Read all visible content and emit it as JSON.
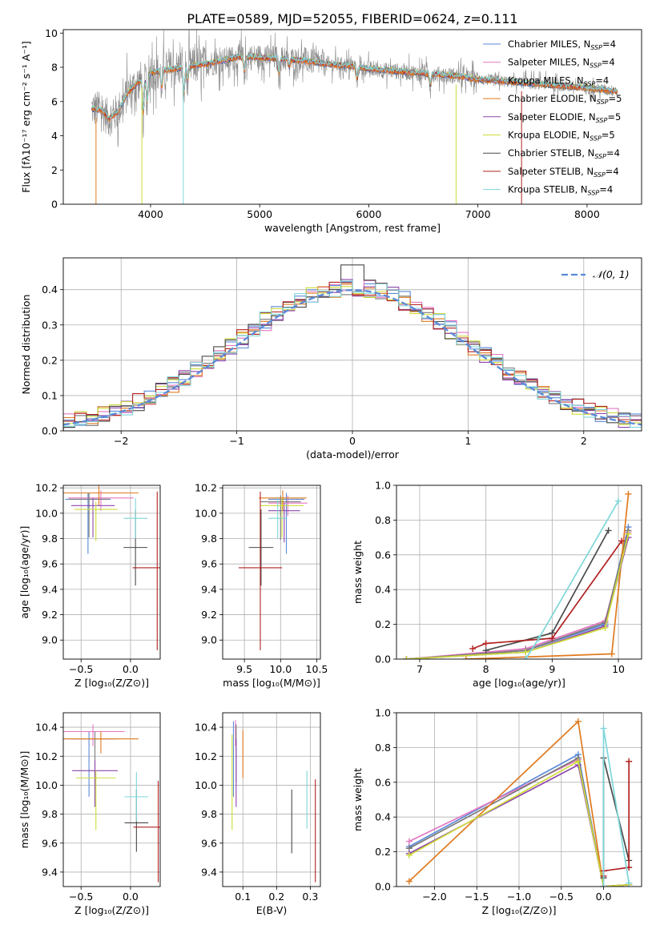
{
  "figure_title": "PLATE=0589, MJD=52055, FIBERID=0624, z=0.111",
  "model_colors": [
    "#5b8ad8",
    "#e377c2",
    "#7a7a7a",
    "#e07a1f",
    "#8e44ad",
    "#cddc39",
    "#4a4a4a",
    "#b22222",
    "#7fd6d9"
  ],
  "chart_data": [
    {
      "id": "spectrum",
      "type": "line",
      "xlabel": "wavelength [Angstrom, rest frame]",
      "ylabel": "Flux [fλ10⁻¹⁷ erg cm⁻² s⁻¹ A⁻¹]",
      "xlim": [
        3200,
        8500
      ],
      "ylim": [
        0,
        10.2
      ],
      "xticks": [
        4000,
        5000,
        6000,
        7000,
        8000
      ],
      "yticks": [
        0,
        2,
        4,
        6,
        8,
        10
      ],
      "grid": false,
      "legend_position": "right",
      "series": [
        {
          "name": "Chabrier MILES, N",
          "sub": "SSP",
          "tail": "=4"
        },
        {
          "name": "Salpeter MILES, N",
          "sub": "SSP",
          "tail": "=4"
        },
        {
          "name": "Kroupa MILES, N",
          "sub": "SSP",
          "tail": "=4"
        },
        {
          "name": "Chabrier ELODIE, N",
          "sub": "SSP",
          "tail": "=5"
        },
        {
          "name": "Salpeter ELODIE, N",
          "sub": "SSP",
          "tail": "=5"
        },
        {
          "name": "Kroupa ELODIE, N",
          "sub": "SSP",
          "tail": "=5"
        },
        {
          "name": "Chabrier STELIB, N",
          "sub": "SSP",
          "tail": "=4"
        },
        {
          "name": "Salpeter STELIB, N",
          "sub": "SSP",
          "tail": "=4"
        },
        {
          "name": "Kroupa STELIB, N",
          "sub": "SSP",
          "tail": "=4"
        }
      ],
      "continuum": {
        "x": [
          3460,
          3550,
          3620,
          3700,
          3800,
          3900,
          4000,
          4200,
          4400,
          4600,
          4800,
          5000,
          5200,
          5400,
          5600,
          5800,
          6000,
          6200,
          6400,
          6600,
          6800,
          7000,
          7200,
          7400,
          7600,
          7800,
          8000,
          8280
        ],
        "y": [
          5.6,
          5.5,
          5.0,
          5.4,
          6.6,
          7.2,
          7.7,
          7.9,
          8.1,
          8.3,
          8.6,
          8.6,
          8.5,
          8.4,
          8.2,
          8.1,
          7.9,
          7.8,
          7.7,
          7.6,
          7.5,
          7.3,
          7.2,
          7.1,
          7.0,
          6.9,
          6.8,
          6.6
        ]
      }
    },
    {
      "id": "residuals",
      "type": "histogram",
      "xlabel": "(data-model)/error",
      "ylabel": "Normed distribution",
      "xlim": [
        -2.5,
        2.5
      ],
      "ylim": [
        0,
        0.49
      ],
      "xticks": [
        -2,
        -1,
        0,
        1,
        2
      ],
      "yticks": [
        0.0,
        0.1,
        0.2,
        0.3,
        0.4
      ],
      "grid": true,
      "legend_position": "top-right",
      "reference_label": "𝒩(0, 1)",
      "bin_width": 0.1,
      "bin_start": -2.5
    },
    {
      "id": "age-vs-Z",
      "type": "errorbar",
      "xlabel": "Z [log₁₀(Z/Z⊙)]",
      "ylabel": "age  [log₁₀(age/yr)]",
      "xlim": [
        -0.68,
        0.3
      ],
      "ylim": [
        8.85,
        10.22
      ],
      "xticks": [
        -0.5,
        0.0
      ],
      "yticks": [
        9.0,
        9.2,
        9.4,
        9.6,
        9.8,
        10.0,
        10.2
      ],
      "grid": true,
      "points": [
        {
          "x": -0.43,
          "y": 10.11,
          "xerr": 0.23,
          "yerr": [
            0.43,
            0.05
          ]
        },
        {
          "x": -0.3,
          "y": 10.12,
          "xerr": 0.33,
          "yerr": [
            0.1,
            0.06
          ]
        },
        {
          "x": -0.42,
          "y": 10.11,
          "xerr": 0.2,
          "yerr": [
            0.3,
            0.05
          ]
        },
        {
          "x": -0.32,
          "y": 10.16,
          "xerr": 0.4,
          "yerr": [
            0.1,
            0.06
          ]
        },
        {
          "x": -0.38,
          "y": 10.06,
          "xerr": 0.22,
          "yerr": [
            0.25,
            0.06
          ]
        },
        {
          "x": -0.35,
          "y": 10.03,
          "xerr": 0.22,
          "yerr": [
            0.25,
            0.06
          ]
        },
        {
          "x": 0.05,
          "y": 9.73,
          "xerr": 0.12,
          "yerr": [
            0.3,
            0.3
          ]
        },
        {
          "x": 0.27,
          "y": 9.57,
          "xerr": 0.25,
          "yerr": [
            0.65,
            0.6
          ]
        },
        {
          "x": 0.05,
          "y": 9.96,
          "xerr": 0.12,
          "yerr": [
            0.16,
            0.16
          ]
        }
      ]
    },
    {
      "id": "age-vs-mass",
      "type": "errorbar",
      "xlabel": "mass [log₁₀(M/M⊙)]",
      "ylabel": "",
      "xlim": [
        9.2,
        10.55
      ],
      "ylim": [
        8.85,
        10.22
      ],
      "xticks": [
        9.5,
        10.0,
        10.5
      ],
      "yticks": [
        9.0,
        9.2,
        9.4,
        9.6,
        9.8,
        10.0,
        10.2
      ],
      "grid": true,
      "points": [
        {
          "x": 10.08,
          "y": 10.11,
          "xerr": 0.25,
          "yerr": [
            0.43,
            0.05
          ]
        },
        {
          "x": 10.1,
          "y": 10.08,
          "xerr": 0.27,
          "yerr": [
            0.1,
            0.06
          ]
        },
        {
          "x": 10.0,
          "y": 10.09,
          "xerr": 0.28,
          "yerr": [
            0.3,
            0.05
          ]
        },
        {
          "x": 10.03,
          "y": 10.12,
          "xerr": 0.33,
          "yerr": [
            0.1,
            0.06
          ]
        },
        {
          "x": 10.05,
          "y": 10.02,
          "xerr": 0.22,
          "yerr": [
            0.25,
            0.06
          ]
        },
        {
          "x": 10.02,
          "y": 10.06,
          "xerr": 0.3,
          "yerr": [
            0.25,
            0.06
          ]
        },
        {
          "x": 9.73,
          "y": 9.73,
          "xerr": 0.17,
          "yerr": [
            0.3,
            0.3
          ]
        },
        {
          "x": 9.72,
          "y": 9.57,
          "xerr": 0.3,
          "yerr": [
            0.65,
            0.6
          ]
        },
        {
          "x": 9.96,
          "y": 9.96,
          "xerr": 0.13,
          "yerr": [
            0.16,
            0.16
          ]
        }
      ]
    },
    {
      "id": "mass-weight-vs-age",
      "type": "line",
      "xlabel": "age  [log₁₀(age/yr)]",
      "ylabel": "mass weight",
      "xlim": [
        6.65,
        10.35
      ],
      "ylim": [
        0,
        1.0
      ],
      "xticks": [
        7,
        8,
        9,
        10
      ],
      "yticks": [
        0.0,
        0.2,
        0.4,
        0.6,
        0.8,
        1.0
      ],
      "grid": true,
      "series": [
        {
          "x": [
            6.8,
            8.6,
            9.8,
            10.15
          ],
          "y": [
            0.0,
            0.05,
            0.2,
            0.76
          ]
        },
        {
          "x": [
            6.8,
            8.6,
            9.8,
            10.15
          ],
          "y": [
            0.0,
            0.06,
            0.22,
            0.73
          ]
        },
        {
          "x": [
            6.8,
            8.6,
            9.8,
            10.15
          ],
          "y": [
            0.0,
            0.05,
            0.21,
            0.74
          ]
        },
        {
          "x": [
            7.7,
            9.9,
            10.15
          ],
          "y": [
            0.0,
            0.03,
            0.95
          ]
        },
        {
          "x": [
            6.8,
            8.6,
            9.8,
            10.15
          ],
          "y": [
            0.0,
            0.04,
            0.19,
            0.7
          ]
        },
        {
          "x": [
            6.8,
            8.6,
            9.8,
            10.15
          ],
          "y": [
            0.0,
            0.04,
            0.18,
            0.72
          ]
        },
        {
          "x": [
            8.0,
            9.0,
            9.85
          ],
          "y": [
            0.05,
            0.15,
            0.74
          ]
        },
        {
          "x": [
            7.8,
            8.0,
            9.0,
            10.05
          ],
          "y": [
            0.06,
            0.09,
            0.12,
            0.68
          ]
        },
        {
          "x": [
            8.6,
            8.8,
            10.0
          ],
          "y": [
            0.0,
            0.12,
            0.91
          ]
        }
      ]
    },
    {
      "id": "mass-vs-Z",
      "type": "errorbar",
      "xlabel": "Z [log₁₀(Z/Z⊙)]",
      "ylabel": "mass [log₁₀(M/M⊙)]",
      "xlim": [
        -0.68,
        0.3
      ],
      "ylim": [
        9.3,
        10.5
      ],
      "xticks": [
        -0.5,
        0.0
      ],
      "yticks": [
        9.4,
        9.6,
        9.8,
        10.0,
        10.2,
        10.4
      ],
      "grid": true,
      "points": [
        {
          "x": -0.42,
          "y": 10.32,
          "xerr": 0.25,
          "yerr": [
            0.4,
            0.05
          ]
        },
        {
          "x": -0.38,
          "y": 10.37,
          "xerr": 0.32,
          "yerr": [
            0.1,
            0.05
          ]
        },
        {
          "x": -0.36,
          "y": 10.32,
          "xerr": 0.25,
          "yerr": [
            0.3,
            0.05
          ]
        },
        {
          "x": -0.3,
          "y": 10.32,
          "xerr": 0.38,
          "yerr": [
            0.1,
            0.05
          ]
        },
        {
          "x": -0.36,
          "y": 10.1,
          "xerr": 0.23,
          "yerr": [
            0.25,
            0.07
          ]
        },
        {
          "x": -0.35,
          "y": 10.05,
          "xerr": 0.2,
          "yerr": [
            0.36,
            0.05
          ]
        },
        {
          "x": 0.06,
          "y": 9.74,
          "xerr": 0.12,
          "yerr": [
            0.2,
            0.23
          ]
        },
        {
          "x": 0.28,
          "y": 9.71,
          "xerr": 0.25,
          "yerr": [
            0.38,
            0.32
          ]
        },
        {
          "x": 0.06,
          "y": 9.92,
          "xerr": 0.12,
          "yerr": [
            0.17,
            0.17
          ]
        }
      ]
    },
    {
      "id": "mass-vs-EBV",
      "type": "errorbar",
      "xlabel": "E(B-V)",
      "ylabel": "",
      "xlim": [
        0.04,
        0.33
      ],
      "ylim": [
        9.3,
        10.5
      ],
      "xticks": [
        0.1,
        0.2,
        0.3
      ],
      "yticks": [
        9.4,
        9.6,
        9.8,
        10.0,
        10.2,
        10.4
      ],
      "grid": true,
      "points": [
        {
          "x": 0.072,
          "y": 10.32,
          "xerr": 0,
          "yerr": [
            0.4,
            0.12
          ]
        },
        {
          "x": 0.078,
          "y": 10.37,
          "xerr": 0,
          "yerr": [
            0.1,
            0.08
          ]
        },
        {
          "x": 0.08,
          "y": 10.32,
          "xerr": 0,
          "yerr": [
            0.3,
            0.1
          ]
        },
        {
          "x": 0.1,
          "y": 10.22,
          "xerr": 0,
          "yerr": [
            0.17,
            0.16
          ]
        },
        {
          "x": 0.08,
          "y": 10.1,
          "xerr": 0,
          "yerr": [
            0.25,
            0.22
          ]
        },
        {
          "x": 0.068,
          "y": 10.05,
          "xerr": 0,
          "yerr": [
            0.36,
            0.3
          ]
        },
        {
          "x": 0.245,
          "y": 9.75,
          "xerr": 0,
          "yerr": [
            0.22,
            0.22
          ]
        },
        {
          "x": 0.315,
          "y": 9.68,
          "xerr": 0,
          "yerr": [
            0.35,
            0.36
          ]
        },
        {
          "x": 0.29,
          "y": 9.9,
          "xerr": 0,
          "yerr": [
            0.2,
            0.2
          ]
        }
      ]
    },
    {
      "id": "mass-weight-vs-Z",
      "type": "line",
      "xlabel": "Z [log₁₀(Z/Z⊙)]",
      "ylabel": "mass weight",
      "xlim": [
        -2.45,
        0.45
      ],
      "ylim": [
        0,
        1.0
      ],
      "xticks": [
        -2.0,
        -1.5,
        -1.0,
        -0.5,
        0.0
      ],
      "yticks": [
        0.0,
        0.2,
        0.4,
        0.6,
        0.8,
        1.0
      ],
      "grid": true,
      "series": [
        {
          "x": [
            -2.3,
            -0.3,
            0.0,
            0.3
          ],
          "y": [
            0.23,
            0.76,
            0.0,
            0.01
          ]
        },
        {
          "x": [
            -2.3,
            -0.3,
            0.0,
            0.3
          ],
          "y": [
            0.26,
            0.73,
            0.0,
            0.01
          ]
        },
        {
          "x": [
            -2.3,
            -0.3,
            0.0,
            0.3
          ],
          "y": [
            0.22,
            0.74,
            0.0,
            0.01
          ]
        },
        {
          "x": [
            -2.3,
            -0.3,
            0.0,
            0.3
          ],
          "y": [
            0.03,
            0.95,
            0.0,
            0.01
          ]
        },
        {
          "x": [
            -2.3,
            -0.3,
            0.0,
            0.3
          ],
          "y": [
            0.19,
            0.7,
            0.0,
            0.01
          ]
        },
        {
          "x": [
            -2.3,
            -0.3,
            0.0,
            0.3
          ],
          "y": [
            0.18,
            0.72,
            0.0,
            0.01
          ]
        },
        {
          "x": [
            0.0,
            0.0,
            0.3
          ],
          "y": [
            0.05,
            0.74,
            0.15
          ]
        },
        {
          "x": [
            0.0,
            0.0,
            0.3,
            0.3
          ],
          "y": [
            0.06,
            0.09,
            0.11,
            0.72
          ]
        },
        {
          "x": [
            0.0,
            0.0,
            0.3
          ],
          "y": [
            0.0,
            0.91,
            0.02
          ]
        }
      ]
    }
  ]
}
